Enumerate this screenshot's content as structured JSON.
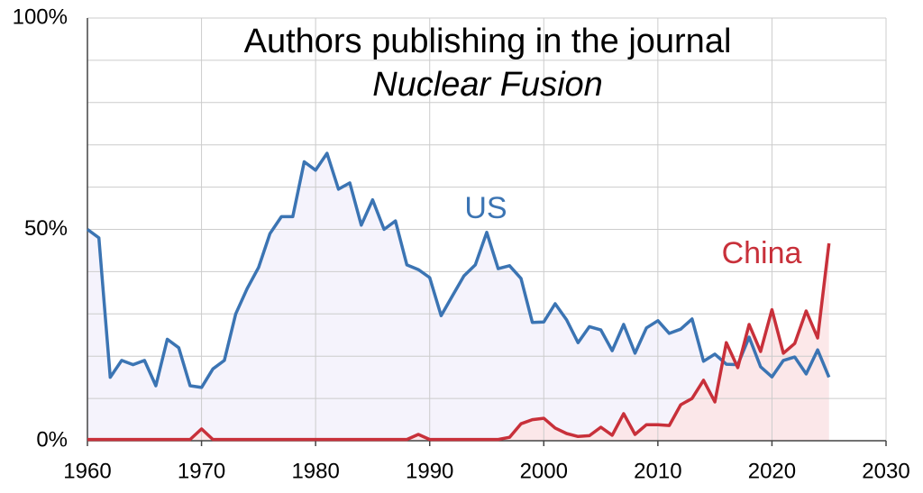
{
  "chart_data": {
    "type": "line",
    "title": "Authors publishing in the journal",
    "subtitle": "Nuclear Fusion",
    "x": [
      1960,
      1961,
      1962,
      1963,
      1964,
      1965,
      1966,
      1967,
      1968,
      1969,
      1970,
      1971,
      1972,
      1973,
      1974,
      1975,
      1976,
      1977,
      1978,
      1979,
      1980,
      1981,
      1982,
      1983,
      1984,
      1985,
      1986,
      1987,
      1988,
      1989,
      1990,
      1991,
      1992,
      1993,
      1994,
      1995,
      1996,
      1997,
      1998,
      1999,
      2000,
      2001,
      2002,
      2003,
      2004,
      2005,
      2006,
      2007,
      2008,
      2009,
      2010,
      2011,
      2012,
      2013,
      2014,
      2015,
      2016,
      2017,
      2018,
      2019,
      2020,
      2021,
      2022,
      2023,
      2024,
      2025
    ],
    "series": [
      {
        "name": "US",
        "color": "#3b74b3",
        "area_color": "#f3f1fb",
        "values": [
          50,
          48,
          15,
          19,
          18,
          19,
          13,
          24,
          22,
          13,
          12.6,
          17,
          19,
          30,
          36,
          41,
          49,
          53,
          53,
          66,
          64,
          68,
          59.5,
          61,
          51,
          57,
          50,
          52,
          41.6,
          40.5,
          38.6,
          29.6,
          34.3,
          39,
          41.6,
          49.3,
          40.7,
          41.4,
          38.4,
          28,
          28.1,
          32.4,
          28.6,
          23.2,
          27,
          26.2,
          21.3,
          27.5,
          20.7,
          26.7,
          28.4,
          25.4,
          26.4,
          28.8,
          18.8,
          20.5,
          18.1,
          18,
          24.5,
          17.5,
          15.1,
          19,
          19.8,
          15.8,
          21.5,
          15
        ]
      },
      {
        "name": "China",
        "color": "#c8303a",
        "area_color": "#fbe4e5",
        "values": [
          0.3,
          0.3,
          0.3,
          0.3,
          0.3,
          0.3,
          0.3,
          0.3,
          0.3,
          0.3,
          2.8,
          0.3,
          0.3,
          0.3,
          0.3,
          0.3,
          0.3,
          0.3,
          0.3,
          0.3,
          0.3,
          0.3,
          0.3,
          0.3,
          0.3,
          0.3,
          0.3,
          0.3,
          0.3,
          1.5,
          0.3,
          0.3,
          0.3,
          0.3,
          0.3,
          0.3,
          0.3,
          0.8,
          4,
          5,
          5.3,
          3,
          1.7,
          1,
          1.2,
          3.2,
          1.3,
          6.4,
          1.5,
          3.8,
          3.8,
          3.6,
          8.5,
          10,
          14.3,
          9.2,
          23.2,
          17.3,
          27.5,
          21.1,
          31,
          20.7,
          23,
          30.7,
          24.3,
          46.7
        ]
      }
    ],
    "xlim": [
      1960,
      2030
    ],
    "xticks": [
      1960,
      1970,
      1980,
      1990,
      2000,
      2010,
      2020,
      2030
    ],
    "ylim": [
      0,
      100
    ],
    "yticks": [
      {
        "value": 0,
        "label": "0%"
      },
      {
        "value": 50,
        "label": "50%"
      },
      {
        "value": 100,
        "label": "100%"
      }
    ],
    "minor_yticks": [
      10,
      20,
      30,
      40,
      60,
      70,
      80,
      90
    ],
    "grid": true
  }
}
